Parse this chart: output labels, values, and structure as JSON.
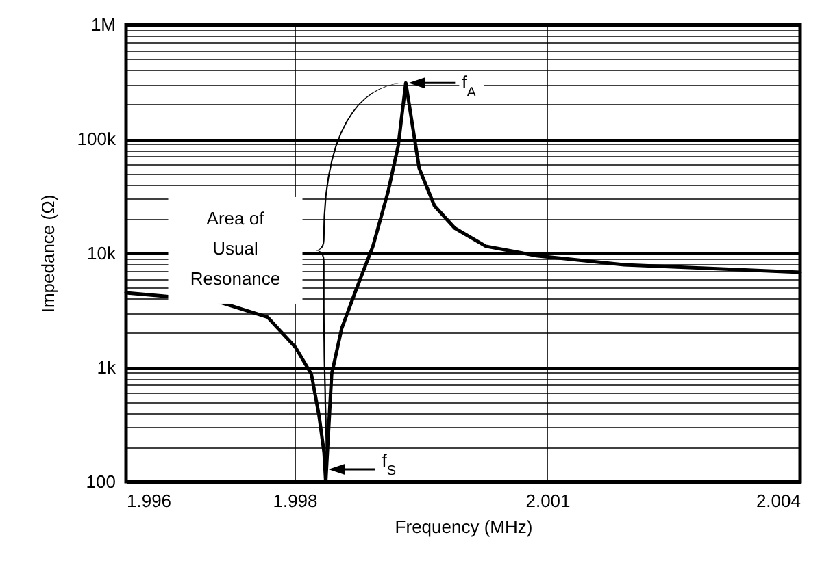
{
  "chart_data": {
    "type": "line",
    "xlabel": "Frequency (MHz)",
    "ylabel": "Impedance (Ω)",
    "x": [
      1.996,
      1.99646,
      1.99707,
      1.99768,
      1.99801,
      1.9982,
      1.99829,
      1.99835,
      1.99837,
      1.99844,
      1.99856,
      1.99874,
      1.99893,
      1.99911,
      1.99923,
      1.99932,
      1.99948,
      1.99966,
      1.9999,
      2.00027,
      2.00087,
      2.00191,
      2.00283,
      2.004
    ],
    "series": [
      {
        "color": "#000000",
        "values": [
          4500,
          4200,
          3800,
          2750,
          1500,
          870,
          380,
          180,
          100,
          870,
          2200,
          5000,
          11500,
          34500,
          87000,
          309000,
          55000,
          26000,
          16600,
          11500,
          9500,
          7900,
          7400,
          6800
        ]
      }
    ],
    "log": "y",
    "xlim": [
      1.996,
      2.004
    ],
    "ylim": [
      100,
      1000000
    ],
    "xticks": [
      1.996,
      1.998,
      2.001,
      2.004
    ],
    "yticks": [
      {
        "value": 100,
        "label": "100"
      },
      {
        "value": 200,
        "label": null
      },
      {
        "value": 300,
        "label": null
      },
      {
        "value": 400,
        "label": null
      },
      {
        "value": 500,
        "label": null
      },
      {
        "value": 600,
        "label": null
      },
      {
        "value": 700,
        "label": null
      },
      {
        "value": 800,
        "label": null
      },
      {
        "value": 900,
        "label": null
      },
      {
        "value": 1000,
        "label": "1k"
      },
      {
        "value": 2000,
        "label": null
      },
      {
        "value": 3000,
        "label": null
      },
      {
        "value": 4000,
        "label": null
      },
      {
        "value": 5000,
        "label": null
      },
      {
        "value": 6000,
        "label": null
      },
      {
        "value": 7000,
        "label": null
      },
      {
        "value": 8000,
        "label": null
      },
      {
        "value": 9000,
        "label": null
      },
      {
        "value": 10000,
        "label": "10k"
      },
      {
        "value": 20000,
        "label": null
      },
      {
        "value": 30000,
        "label": null
      },
      {
        "value": 40000,
        "label": null
      },
      {
        "value": 50000,
        "label": null
      },
      {
        "value": 60000,
        "label": null
      },
      {
        "value": 70000,
        "label": null
      },
      {
        "value": 80000,
        "label": null
      },
      {
        "value": 90000,
        "label": null
      },
      {
        "value": 100000,
        "label": "100k"
      },
      {
        "value": 200000,
        "label": null
      },
      {
        "value": 300000,
        "label": null
      },
      {
        "value": 400000,
        "label": null
      },
      {
        "value": 500000,
        "label": null
      },
      {
        "value": 600000,
        "label": null
      },
      {
        "value": 700000,
        "label": null
      },
      {
        "value": 800000,
        "label": null
      },
      {
        "value": 900000,
        "label": null
      },
      {
        "value": 1000000,
        "label": "1M"
      }
    ],
    "grid": true,
    "marker": "none",
    "line_style": "solid",
    "annotations": [
      "f$_{A}$",
      "f$_{S}$",
      "Area of\nUsual\nResonance"
    ]
  }
}
